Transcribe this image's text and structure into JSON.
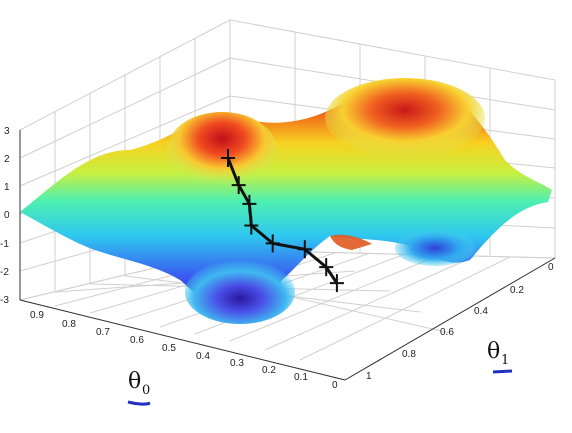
{
  "chart_data": {
    "type": "surface",
    "xlabel": "θ",
    "xlabel_sub": "0",
    "ylabel": "θ",
    "ylabel_sub": "1",
    "x_ticks": [
      "0.9",
      "0.8",
      "0.7",
      "0.6",
      "0.5",
      "0.4",
      "0.3",
      "0.2",
      "0.1",
      "0"
    ],
    "y_ticks": [
      "0",
      "0.2",
      "0.4",
      "0.6",
      "0.8",
      "1"
    ],
    "z_ticks": [
      "3",
      "2",
      "1",
      "0",
      "-1",
      "-2",
      "-3"
    ],
    "zlim": [
      -3,
      3
    ],
    "grid": true,
    "colormap": "jet",
    "path_points": [
      {
        "x": 0.52,
        "y": 0.18,
        "z": 2.2
      },
      {
        "x": 0.5,
        "y": 0.2,
        "z": 1.2
      },
      {
        "x": 0.48,
        "y": 0.22,
        "z": 0.5
      },
      {
        "x": 0.5,
        "y": 0.26,
        "z": -0.5
      },
      {
        "x": 0.46,
        "y": 0.3,
        "z": -1.2
      },
      {
        "x": 0.4,
        "y": 0.36,
        "z": -1.5
      },
      {
        "x": 0.36,
        "y": 0.4,
        "z": -2.2
      },
      {
        "x": 0.34,
        "y": 0.42,
        "z": -2.8
      }
    ],
    "underline_color": "#1f2fbf"
  }
}
